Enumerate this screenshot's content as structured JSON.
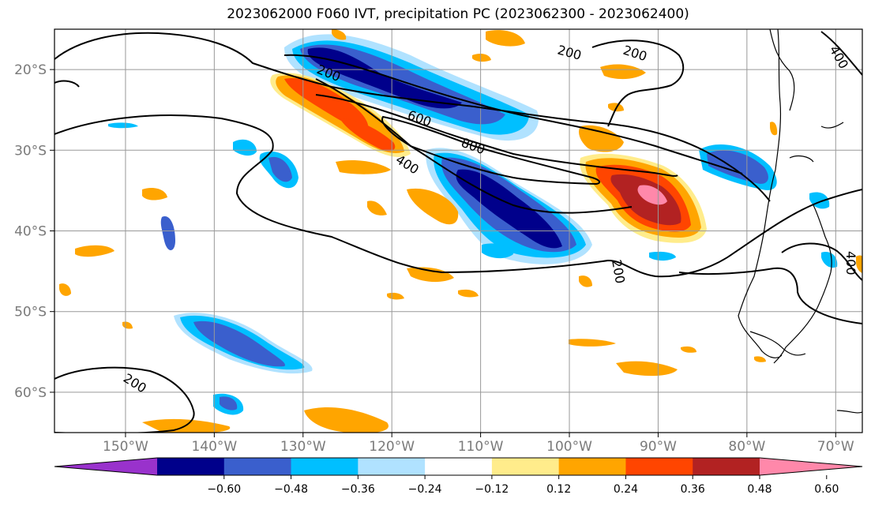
{
  "title": "2023062000 F060 IVT, precipitation PC (2023062300 - 2023062400)",
  "map": {
    "lon_range": [
      -158,
      -67
    ],
    "lat_range": [
      -65,
      -15
    ],
    "lon_ticks": [
      {
        "value": -150,
        "label": "150°W"
      },
      {
        "value": -140,
        "label": "140°W"
      },
      {
        "value": -130,
        "label": "130°W"
      },
      {
        "value": -120,
        "label": "120°W"
      },
      {
        "value": -110,
        "label": "110°W"
      },
      {
        "value": -100,
        "label": "100°W"
      },
      {
        "value": -90,
        "label": "90°W"
      },
      {
        "value": -80,
        "label": "80°W"
      },
      {
        "value": -70,
        "label": "70°W"
      }
    ],
    "lat_ticks": [
      {
        "value": -20,
        "label": "20°S"
      },
      {
        "value": -30,
        "label": "30°S"
      },
      {
        "value": -40,
        "label": "40°S"
      },
      {
        "value": -50,
        "label": "50°S"
      },
      {
        "value": -60,
        "label": "60°S"
      }
    ],
    "grid": true,
    "ivt_contour_labels": [
      "200",
      "200",
      "200",
      "400",
      "600",
      "800",
      "200",
      "200",
      "400",
      "400"
    ]
  },
  "colorbar": {
    "colors": [
      "#9932cc",
      "#00008b",
      "#3a5fcd",
      "#00bfff",
      "#b0e2ff",
      "#ffffff",
      "#ffec8b",
      "#ffa500",
      "#ff4500",
      "#b22222",
      "#ff88aa"
    ],
    "tick_labels": [
      "−0.60",
      "−0.48",
      "−0.36",
      "−0.24",
      "−0.12",
      "0.12",
      "0.24",
      "0.36",
      "0.48",
      "0.60"
    ]
  }
}
